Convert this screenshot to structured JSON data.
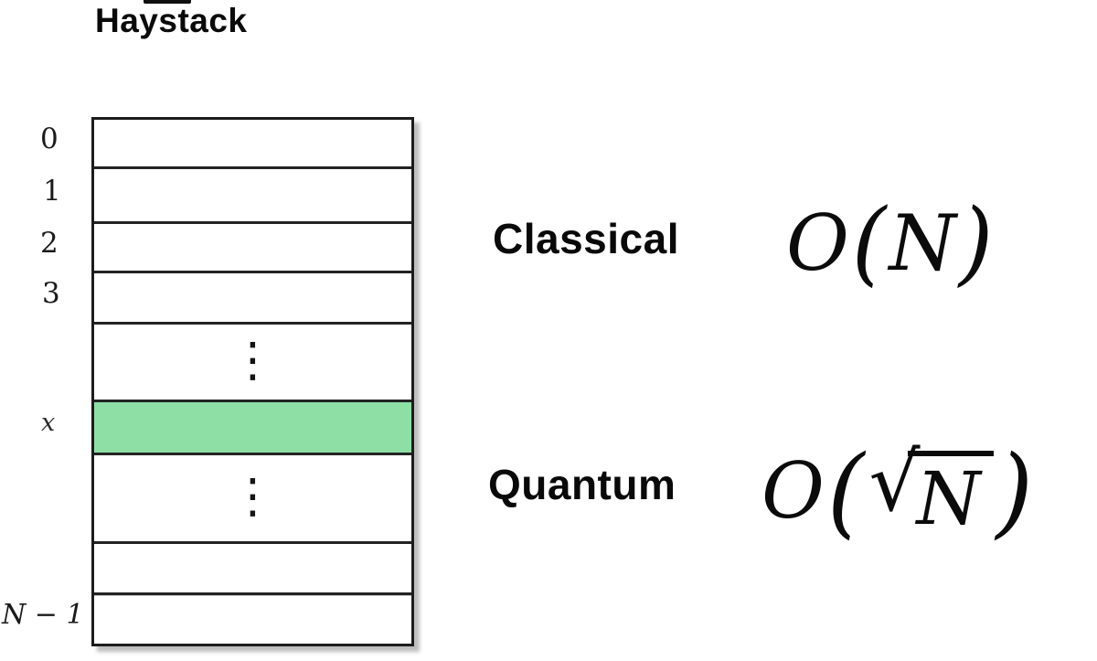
{
  "title": "Haystack",
  "array": {
    "row_labels": {
      "r0": "0",
      "r1": "1",
      "r2": "2",
      "r3": "3",
      "ellipsis_top": "⋮",
      "target": "x",
      "ellipsis_bottom": "⋮",
      "last": "N − 1"
    },
    "highlight_color": "#8ddfa5",
    "border_color": "#1c1c1c"
  },
  "classical": {
    "label": "Classical",
    "formula": {
      "o": "O",
      "open": "(",
      "arg": "N",
      "close": ")"
    }
  },
  "quantum": {
    "label": "Quantum",
    "formula": {
      "o": "O",
      "open": "(",
      "sqrt": "√",
      "arg": "N",
      "close": ")"
    }
  }
}
